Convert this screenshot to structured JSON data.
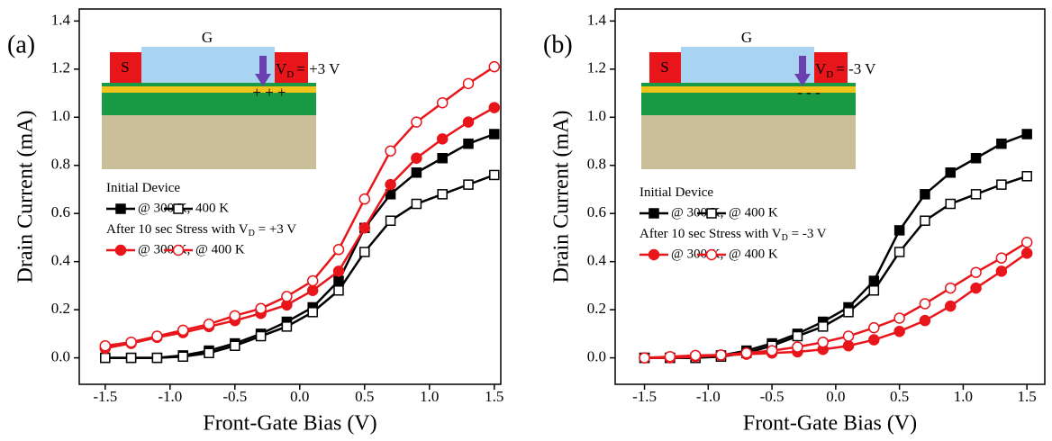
{
  "chart_data": [
    {
      "type": "line",
      "panel_label": "(a)",
      "x_label": "Front-Gate Bias (V)",
      "y_label": "Drain Current (mA)",
      "x": [
        -1.5,
        -1.3,
        -1.1,
        -0.9,
        -0.7,
        -0.5,
        -0.3,
        -0.1,
        0.1,
        0.3,
        0.5,
        0.7,
        0.9,
        1.1,
        1.3,
        1.5
      ],
      "series": [
        {
          "name": "@ 300 K,",
          "color": "#000000",
          "marker": "square",
          "filled": true,
          "values": [
            0,
            0,
            0,
            0.01,
            0.03,
            0.06,
            0.1,
            0.15,
            0.21,
            0.32,
            0.54,
            0.68,
            0.77,
            0.83,
            0.89,
            0.93
          ]
        },
        {
          "name": "400 K",
          "color": "#000000",
          "marker": "square",
          "filled": false,
          "values": [
            0,
            0,
            0,
            0.005,
            0.02,
            0.05,
            0.09,
            0.13,
            0.19,
            0.28,
            0.44,
            0.57,
            0.64,
            0.68,
            0.72,
            0.76
          ]
        },
        {
          "name": "@ 300 K,",
          "color": "#e8151b",
          "marker": "circle",
          "filled": true,
          "values": [
            0.04,
            0.06,
            0.085,
            0.105,
            0.13,
            0.155,
            0.185,
            0.22,
            0.28,
            0.36,
            0.54,
            0.72,
            0.83,
            0.91,
            0.98,
            1.04
          ]
        },
        {
          "name": "@ 400 K",
          "color": "#e8151b",
          "marker": "circle",
          "filled": false,
          "values": [
            0.05,
            0.065,
            0.09,
            0.115,
            0.14,
            0.175,
            0.205,
            0.255,
            0.32,
            0.45,
            0.66,
            0.86,
            0.98,
            1.06,
            1.14,
            1.21
          ]
        }
      ],
      "legend_titles": [
        {
          "text": "Initial Device"
        },
        {
          "text": "After 10 sec Stress with V",
          "sub": "D",
          "tail": " = +3 V"
        }
      ],
      "inset": {
        "gate": "G",
        "source": "S",
        "drain": "V",
        "drain_sub": "D",
        "drain_value": "= +3 V",
        "charges": "+ + +"
      },
      "xlim": [
        -1.7,
        1.55
      ],
      "ylim": [
        -0.11,
        1.45
      ],
      "xticks": [
        -1.5,
        {
          "value": -1,
          "label": "-1.0"
        },
        -0.5,
        {
          "value": 0,
          "label": "0.0"
        },
        0.5,
        {
          "value": 1,
          "label": "1.0"
        },
        1.5
      ],
      "yticks": [
        {
          "value": 0,
          "label": "0.0"
        },
        0.2,
        0.4,
        0.6,
        0.8,
        {
          "value": 1,
          "label": "1.0"
        },
        1.2,
        1.4
      ]
    },
    {
      "type": "line",
      "panel_label": "(b)",
      "x_label": "Front-Gate Bias (V)",
      "y_label": "Drain Current (mA)",
      "x": [
        -1.5,
        -1.3,
        -1.1,
        -0.9,
        -0.7,
        -0.5,
        -0.3,
        -0.1,
        0.1,
        0.3,
        0.5,
        0.7,
        0.9,
        1.1,
        1.3,
        1.5
      ],
      "series": [
        {
          "name": "@ 300 K,",
          "color": "#000000",
          "marker": "square",
          "filled": true,
          "values": [
            0,
            0,
            0,
            0.01,
            0.03,
            0.06,
            0.1,
            0.15,
            0.21,
            0.32,
            0.53,
            0.68,
            0.77,
            0.83,
            0.89,
            0.93
          ]
        },
        {
          "name": "@ 400 K",
          "color": "#000000",
          "marker": "square",
          "filled": false,
          "values": [
            0,
            0,
            0,
            0.005,
            0.02,
            0.05,
            0.09,
            0.13,
            0.19,
            0.28,
            0.44,
            0.57,
            0.64,
            0.68,
            0.72,
            0.755
          ]
        },
        {
          "name": "@ 300 K,",
          "color": "#e8151b",
          "marker": "circle",
          "filled": true,
          "values": [
            0,
            0,
            0.005,
            0.01,
            0.015,
            0.02,
            0.025,
            0.035,
            0.05,
            0.075,
            0.11,
            0.155,
            0.215,
            0.29,
            0.36,
            0.435
          ]
        },
        {
          "name": "@ 400 K",
          "color": "#e8151b",
          "marker": "circle",
          "filled": false,
          "values": [
            0,
            0.005,
            0.01,
            0.012,
            0.02,
            0.03,
            0.045,
            0.065,
            0.09,
            0.125,
            0.165,
            0.225,
            0.29,
            0.355,
            0.415,
            0.48
          ]
        }
      ],
      "legend_titles": [
        {
          "text": "Initial Device"
        },
        {
          "text": "After 10 sec Stress with V",
          "sub": "D",
          "tail": " = -3 V"
        }
      ],
      "inset": {
        "gate": "G",
        "source": "S",
        "drain": "V",
        "drain_sub": "D",
        "drain_value": "= -3 V",
        "charges": "- - -"
      },
      "xlim": [
        -1.73,
        1.64
      ],
      "ylim": [
        -0.11,
        1.45
      ],
      "xticks": [
        -1.5,
        {
          "value": -1,
          "label": "-1.0"
        },
        -0.5,
        {
          "value": 0,
          "label": "0.0"
        },
        0.5,
        {
          "value": 1,
          "label": "1.0"
        },
        1.5
      ],
      "yticks": [
        {
          "value": 0,
          "label": "0.0"
        },
        0.2,
        0.4,
        0.6,
        0.8,
        {
          "value": 1,
          "label": "1.0"
        },
        1.2,
        1.4
      ]
    }
  ]
}
